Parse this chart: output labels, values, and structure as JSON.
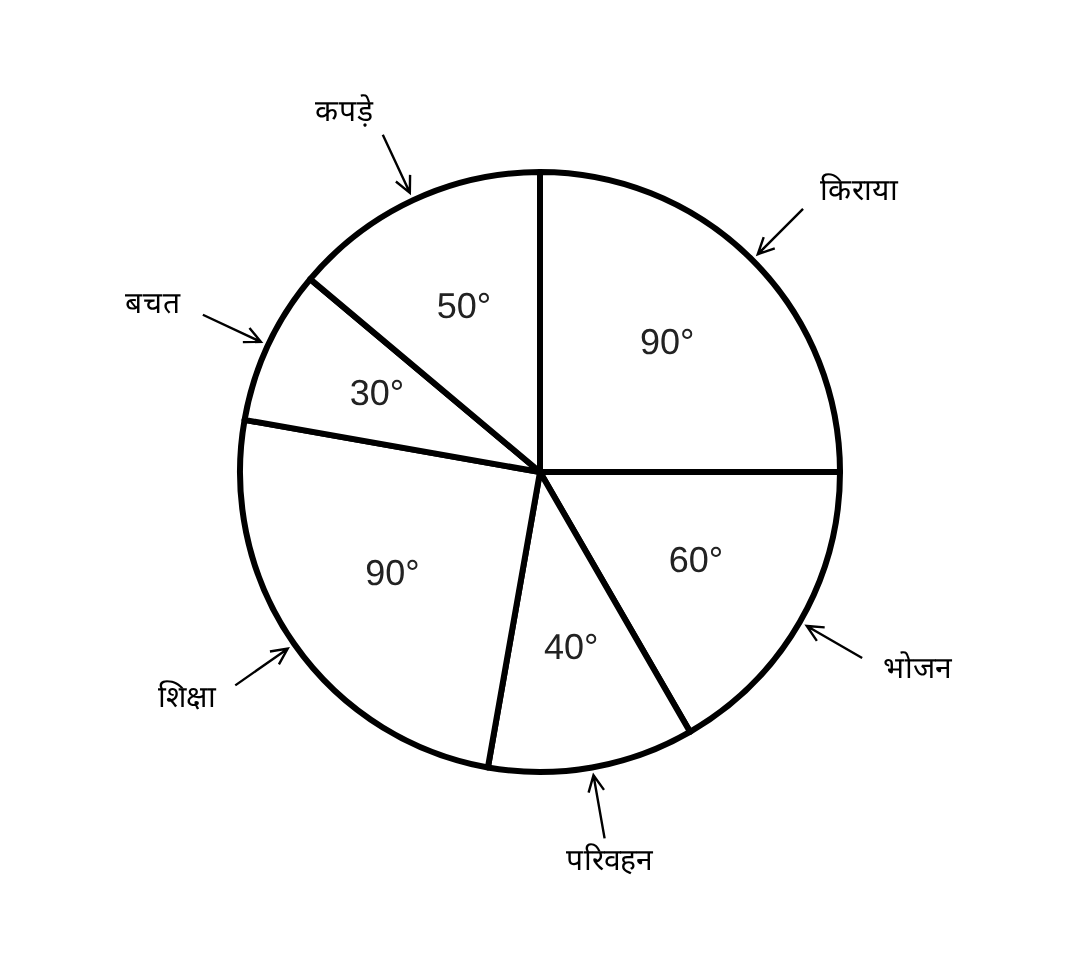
{
  "chart_data": {
    "type": "pie",
    "categories": [
      "किराया",
      "भोजन",
      "परिवहन",
      "शिक्षा",
      "बचत",
      "कपड़े"
    ],
    "values": [
      90,
      60,
      40,
      90,
      30,
      50
    ],
    "value_labels": [
      "90°",
      "60°",
      "40°",
      "90°",
      "30°",
      "50°"
    ],
    "colors": [
      "#ffffff",
      "#ffffff",
      "#ffffff",
      "#ffffff",
      "#ffffff",
      "#ffffff"
    ]
  }
}
